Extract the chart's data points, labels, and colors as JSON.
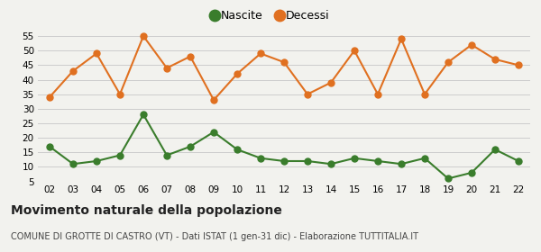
{
  "years": [
    "02",
    "03",
    "04",
    "05",
    "06",
    "07",
    "08",
    "09",
    "10",
    "11",
    "12",
    "13",
    "14",
    "15",
    "16",
    "17",
    "18",
    "19",
    "20",
    "21",
    "22"
  ],
  "nascite": [
    17,
    11,
    12,
    14,
    28,
    14,
    17,
    22,
    16,
    13,
    12,
    12,
    11,
    13,
    12,
    11,
    13,
    6,
    8,
    16,
    12
  ],
  "decessi": [
    34,
    43,
    49,
    35,
    55,
    44,
    48,
    33,
    42,
    49,
    46,
    35,
    39,
    50,
    35,
    54,
    35,
    46,
    52,
    47,
    45
  ],
  "nascite_color": "#3a7d2c",
  "decessi_color": "#e07020",
  "background_color": "#f2f2ee",
  "grid_color": "#cccccc",
  "ylim": [
    5,
    57
  ],
  "yticks": [
    5,
    10,
    15,
    20,
    25,
    30,
    35,
    40,
    45,
    50,
    55
  ],
  "title": "Movimento naturale della popolazione",
  "subtitle": "COMUNE DI GROTTE DI CASTRO (VT) - Dati ISTAT (1 gen-31 dic) - Elaborazione TUTTITALIA.IT",
  "legend_labels": [
    "Nascite",
    "Decessi"
  ],
  "marker_size": 5,
  "linewidth": 1.5
}
